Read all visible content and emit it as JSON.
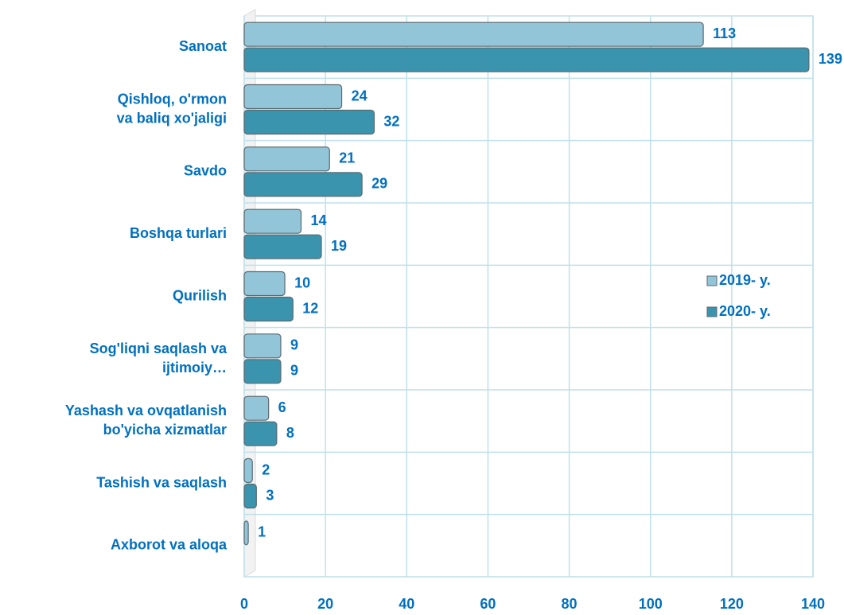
{
  "chart_data": {
    "type": "bar",
    "orientation": "horizontal",
    "categories": [
      "Sanoat",
      "Qishloq, o'rmon\nva baliq xo'jaligi",
      "Savdo",
      "Boshqa turlari",
      "Qurilish",
      "Sog'liqni saqlash va\nijtimoiy…",
      "Yashash va ovqatlanish\nbo'yicha xizmatlar",
      "Tashish va saqlash",
      "Axborot va aloqa"
    ],
    "series": [
      {
        "name": "2019- y.",
        "color": "#92c5d8",
        "values": [
          113,
          24,
          21,
          14,
          10,
          9,
          6,
          2,
          1
        ]
      },
      {
        "name": "2020- y.",
        "color": "#3a94ad",
        "values": [
          139,
          32,
          29,
          19,
          12,
          9,
          8,
          3,
          null
        ]
      }
    ],
    "xlim": [
      0,
      140
    ],
    "xticks": [
      0,
      20,
      40,
      60,
      80,
      100,
      120,
      140
    ],
    "grid": true,
    "legend": "right"
  }
}
